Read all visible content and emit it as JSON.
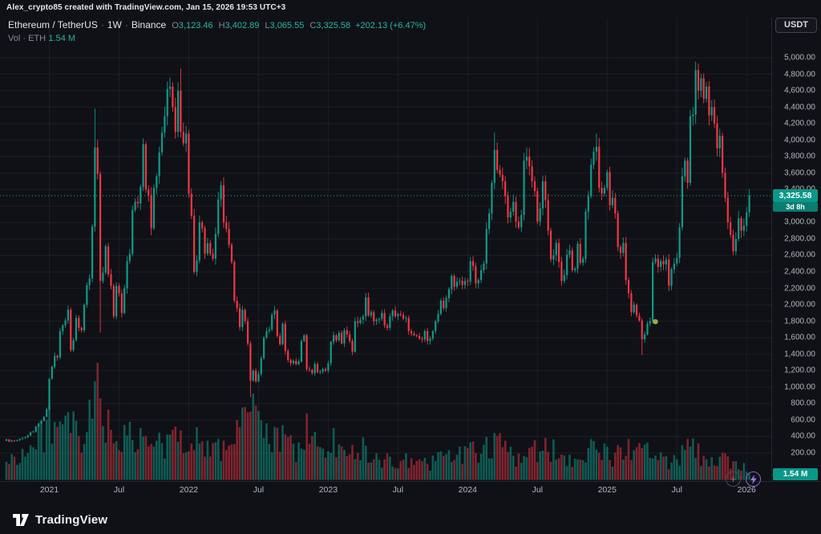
{
  "attribution": "Alex_crypto85 created with TradingView.com, Jan 15, 2026 19:53 UTC+3",
  "currency_button": "USDT",
  "price_label": "3,325.58",
  "countdown": "3d 8h",
  "volume_axis_label": "1.54 M",
  "icons": {
    "plus": "+"
  },
  "footer": {
    "brand": "TradingView"
  },
  "legend": {
    "symbol": "Ethereum / TetherUS",
    "sep": "·",
    "interval": "1W",
    "exchange": "Binance",
    "o_label": "O",
    "o_value": "3,123.46",
    "h_label": "H",
    "h_value": "3,402.89",
    "l_label": "L",
    "l_value": "3,065.55",
    "c_label": "C",
    "c_value": "3,325.58",
    "change": "+202.13 (+6.47%)",
    "volume_label": "Vol · ETH",
    "volume_value": "1.54 M"
  },
  "colors": {
    "up": "#119988",
    "down": "#f23645",
    "vol_up": "rgba(17,153,136,0.55)",
    "vol_down": "rgba(242,54,69,0.5)",
    "grid": "rgba(250,250,250,0.055)",
    "price_line": "#2ea99b",
    "marker": "#b3ad3f",
    "bolt": "#9b79e2"
  },
  "chart_data": {
    "type": "candlestick+volume",
    "title": "Ethereum / TetherUS · 1W · Binance",
    "y_axis_label_unit": "USDT",
    "y_ticks": [
      200,
      400,
      600,
      800,
      1000,
      1200,
      1400,
      1600,
      1800,
      2000,
      2200,
      2400,
      2600,
      2800,
      3000,
      3200,
      3400,
      3600,
      3800,
      4000,
      4200,
      4400,
      4600,
      4800,
      5000
    ],
    "x_ticks": [
      {
        "label": "2021",
        "week": 16
      },
      {
        "label": "Jul",
        "week": 42
      },
      {
        "label": "2022",
        "week": 68
      },
      {
        "label": "Jul",
        "week": 94
      },
      {
        "label": "2023",
        "week": 120
      },
      {
        "label": "Jul",
        "week": 146
      },
      {
        "label": "2024",
        "week": 172
      },
      {
        "label": "Jul",
        "week": 198
      },
      {
        "label": "2025",
        "week": 224
      },
      {
        "label": "Jul",
        "week": 250
      },
      {
        "label": "2026",
        "week": 276
      }
    ],
    "weeks_total": 278,
    "first_week": "Sep 2020",
    "last_week": "Jan 12 2026",
    "last_candle": {
      "o": 3123.46,
      "h": 3402.89,
      "l": 3065.55,
      "c": 3325.58,
      "volume_m": 1.54
    },
    "last_price": 3325.58,
    "closes": [
      365,
      340,
      352,
      345,
      355,
      370,
      382,
      390,
      414,
      450,
      460,
      520,
      560,
      590,
      640,
      730,
      1100,
      1250,
      1380,
      1360,
      1680,
      1750,
      1810,
      1940,
      1450,
      1570,
      1840,
      1720,
      1690,
      2000,
      2240,
      2320,
      2950,
      3910,
      3590,
      2290,
      2390,
      2710,
      2370,
      2230,
      1860,
      2230,
      2140,
      1900,
      2200,
      2530,
      2620,
      3150,
      3250,
      3230,
      3430,
      3950,
      3400,
      3330,
      2930,
      3420,
      3560,
      3850,
      4090,
      4290,
      4620,
      4650,
      4400,
      4100,
      4600,
      4100,
      3960,
      4080,
      3350,
      3080,
      2400,
      2540,
      3000,
      2930,
      2620,
      2750,
      2620,
      2560,
      2860,
      3280,
      3450,
      3000,
      2920,
      2730,
      2520,
      2050,
      1960,
      1730,
      1940,
      1800,
      1530,
      1080,
      1200,
      1070,
      1160,
      1350,
      1600,
      1680,
      1700,
      1880,
      1930,
      1620,
      1520,
      1770,
      1440,
      1330,
      1290,
      1320,
      1280,
      1310,
      1560,
      1630,
      1220,
      1210,
      1170,
      1280,
      1180,
      1190,
      1220,
      1200,
      1290,
      1550,
      1630,
      1570,
      1660,
      1530,
      1690,
      1640,
      1560,
      1430,
      1800,
      1780,
      1820,
      1860,
      2090,
      1870,
      1910,
      1800,
      1820,
      1830,
      1900,
      1750,
      1720,
      1860,
      1930,
      1860,
      1890,
      1880,
      1830,
      1840,
      1680,
      1650,
      1630,
      1620,
      1590,
      1580,
      1680,
      1560,
      1590,
      1680,
      1800,
      1890,
      2050,
      1960,
      2080,
      2190,
      2350,
      2220,
      2280,
      2290,
      2240,
      2290,
      2280,
      2530,
      2470,
      2260,
      2300,
      2420,
      2500,
      2920,
      3110,
      3480,
      3880,
      3640,
      3580,
      3500,
      3320,
      3060,
      3130,
      3250,
      3010,
      2940,
      3090,
      3750,
      3800,
      3680,
      3500,
      3380,
      3010,
      3170,
      3500,
      3270,
      2900,
      2550,
      2600,
      2750,
      2520,
      2290,
      2360,
      2610,
      2660,
      2420,
      2440,
      2740,
      2510,
      2560,
      3130,
      3320,
      3700,
      3860,
      3920,
      3420,
      3350,
      3420,
      3610,
      3210,
      3300,
      3110,
      2700,
      2630,
      2750,
      2300,
      2140,
      1910,
      2000,
      1870,
      1810,
      1580,
      1640,
      1770,
      1800,
      2520,
      2560,
      2460,
      2530,
      2490,
      2550,
      2230,
      2430,
      2500,
      2570,
      2940,
      3560,
      3750,
      3480,
      4290,
      4310,
      4850,
      4600,
      4750,
      4500,
      4650,
      4300,
      4400,
      4200,
      3900,
      4050,
      3600,
      3300,
      3000,
      2850,
      2650,
      2800,
      3050,
      2900,
      2960,
      3123.46,
      3325.58
    ],
    "high_overrides": {
      "33": 4380,
      "65": 4868,
      "182": 4092,
      "220": 4080,
      "257": 4953
    },
    "low_overrides": {
      "35": 1660,
      "91": 880,
      "237": 1390
    },
    "volume_anchors_m": [
      [
        0,
        4
      ],
      [
        4,
        6
      ],
      [
        8,
        7
      ],
      [
        12,
        9
      ],
      [
        16,
        15
      ],
      [
        20,
        10
      ],
      [
        24,
        13
      ],
      [
        28,
        8
      ],
      [
        33,
        18
      ],
      [
        34,
        27
      ],
      [
        35,
        22
      ],
      [
        38,
        12
      ],
      [
        42,
        9
      ],
      [
        47,
        10
      ],
      [
        51,
        9
      ],
      [
        56,
        8
      ],
      [
        60,
        9
      ],
      [
        64,
        10
      ],
      [
        68,
        9
      ],
      [
        70,
        12
      ],
      [
        76,
        7
      ],
      [
        80,
        7
      ],
      [
        84,
        10
      ],
      [
        86,
        14
      ],
      [
        91,
        19
      ],
      [
        94,
        13
      ],
      [
        96,
        10
      ],
      [
        100,
        9
      ],
      [
        104,
        10
      ],
      [
        108,
        7
      ],
      [
        110,
        9
      ],
      [
        112,
        12
      ],
      [
        116,
        7
      ],
      [
        120,
        7
      ],
      [
        122,
        9
      ],
      [
        126,
        6
      ],
      [
        130,
        8
      ],
      [
        134,
        7
      ],
      [
        138,
        5
      ],
      [
        142,
        4.5
      ],
      [
        146,
        4.5
      ],
      [
        150,
        4.5
      ],
      [
        154,
        3.5
      ],
      [
        158,
        4
      ],
      [
        162,
        5.5
      ],
      [
        166,
        6.5
      ],
      [
        170,
        5.5
      ],
      [
        174,
        6.5
      ],
      [
        179,
        8.5
      ],
      [
        182,
        9.5
      ],
      [
        186,
        6.5
      ],
      [
        190,
        5.5
      ],
      [
        193,
        7.5
      ],
      [
        198,
        6.5
      ],
      [
        202,
        7.5
      ],
      [
        207,
        6.5
      ],
      [
        212,
        4.5
      ],
      [
        216,
        7.5
      ],
      [
        219,
        8.5
      ],
      [
        222,
        6.5
      ],
      [
        226,
        5.5
      ],
      [
        228,
        6.5
      ],
      [
        231,
        7.5
      ],
      [
        233,
        6.5
      ],
      [
        237,
        7.5
      ],
      [
        241,
        8.5
      ],
      [
        245,
        4.5
      ],
      [
        249,
        4.5
      ],
      [
        252,
        6.5
      ],
      [
        255,
        7.5
      ],
      [
        257,
        6.5
      ],
      [
        260,
        5.5
      ],
      [
        263,
        4.5
      ],
      [
        267,
        5.5
      ],
      [
        270,
        4.5
      ],
      [
        274,
        3.5
      ],
      [
        277,
        1.54
      ]
    ],
    "marker": {
      "week": 242,
      "price": 1795
    }
  }
}
